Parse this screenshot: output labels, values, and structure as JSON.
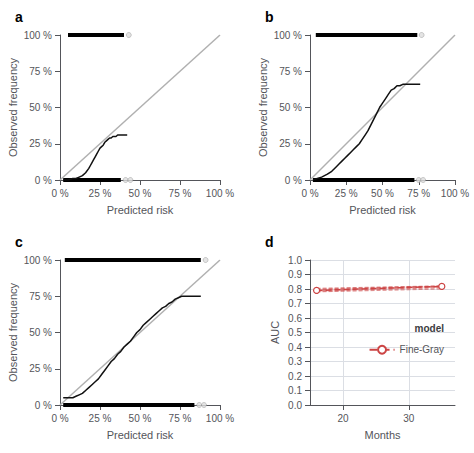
{
  "chart_data": [
    {
      "type": "line",
      "title": "a",
      "xlabel": "Predicted risk",
      "ylabel": "Observed frequency",
      "xlim": [
        0,
        100
      ],
      "ylim": [
        0,
        100
      ],
      "xticks": [
        {
          "value": 0,
          "label": "0 %"
        },
        {
          "value": 25,
          "label": "25 %"
        },
        {
          "value": 50,
          "label": "50 %"
        },
        {
          "value": 75,
          "label": "75 %"
        },
        {
          "value": 100,
          "label": "100 %"
        }
      ],
      "yticks": [
        {
          "value": 0,
          "label": "0 %"
        },
        {
          "value": 25,
          "label": "25 %"
        },
        {
          "value": 50,
          "label": "50 %"
        },
        {
          "value": 75,
          "label": "75 %"
        },
        {
          "value": 100,
          "label": "100 %"
        }
      ],
      "grid": false,
      "series": [
        {
          "type": "line",
          "color": "#b0b0b0",
          "x": [
            0,
            100
          ],
          "values": [
            0,
            100
          ]
        },
        {
          "type": "line",
          "color": "#111111",
          "x": [
            2,
            5,
            8,
            10,
            12,
            14,
            16,
            18,
            19,
            20,
            21,
            22,
            23,
            24,
            25,
            26,
            27,
            28,
            29,
            30,
            31,
            32,
            33,
            34,
            35,
            36,
            37,
            38,
            39,
            40,
            42
          ],
          "values": [
            0,
            0,
            1,
            1,
            2,
            3,
            5,
            8,
            10,
            12,
            14,
            16,
            18,
            20,
            22,
            23,
            24,
            26,
            27,
            28,
            29,
            29,
            30,
            30,
            30,
            31,
            31,
            31,
            31,
            31,
            31
          ]
        },
        {
          "type": "rug",
          "color": "#000000",
          "x": [
            5,
            40
          ],
          "values": [
            100,
            100
          ]
        },
        {
          "type": "scatter",
          "marker": "circle",
          "color": "#dddddd",
          "x": [
            43
          ],
          "values": [
            100
          ]
        },
        {
          "type": "rug",
          "color": "#000000",
          "x": [
            2,
            38
          ],
          "values": [
            0,
            0
          ]
        },
        {
          "type": "scatter",
          "marker": "circle",
          "color": "#dddddd",
          "x": [
            41,
            44
          ],
          "values": [
            0,
            0
          ]
        }
      ]
    },
    {
      "type": "line",
      "title": "b",
      "xlabel": "Predicted risk",
      "ylabel": "Observed frequency",
      "xlim": [
        0,
        100
      ],
      "ylim": [
        0,
        100
      ],
      "xticks": [
        {
          "value": 0,
          "label": "0 %"
        },
        {
          "value": 25,
          "label": "25 %"
        },
        {
          "value": 50,
          "label": "50 %"
        },
        {
          "value": 75,
          "label": "75 %"
        },
        {
          "value": 100,
          "label": "100 %"
        }
      ],
      "yticks": [
        {
          "value": 0,
          "label": "0 %"
        },
        {
          "value": 25,
          "label": "25 %"
        },
        {
          "value": 50,
          "label": "50 %"
        },
        {
          "value": 75,
          "label": "75 %"
        },
        {
          "value": 100,
          "label": "100 %"
        }
      ],
      "grid": false,
      "series": [
        {
          "type": "line",
          "color": "#b0b0b0",
          "x": [
            0,
            100
          ],
          "values": [
            0,
            100
          ]
        },
        {
          "type": "line",
          "color": "#111111",
          "x": [
            2,
            5,
            8,
            12,
            15,
            18,
            20,
            22,
            24,
            26,
            28,
            30,
            32,
            34,
            36,
            38,
            40,
            42,
            44,
            46,
            48,
            50,
            52,
            54,
            56,
            58,
            60,
            62,
            64,
            66,
            68,
            70,
            72,
            74,
            76
          ],
          "values": [
            0,
            1,
            2,
            4,
            6,
            9,
            11,
            13,
            15,
            17,
            19,
            21,
            23,
            25,
            28,
            31,
            34,
            38,
            42,
            46,
            50,
            53,
            56,
            59,
            62,
            63,
            65,
            65,
            66,
            66,
            66,
            66,
            66,
            66,
            66
          ]
        },
        {
          "type": "rug",
          "color": "#000000",
          "x": [
            4,
            74
          ],
          "values": [
            100,
            100
          ]
        },
        {
          "type": "scatter",
          "marker": "circle",
          "color": "#dddddd",
          "x": [
            77
          ],
          "values": [
            100
          ]
        },
        {
          "type": "rug",
          "color": "#000000",
          "x": [
            2,
            72
          ],
          "values": [
            0,
            0
          ]
        },
        {
          "type": "scatter",
          "marker": "circle",
          "color": "#dddddd",
          "x": [
            75,
            78
          ],
          "values": [
            0,
            0
          ]
        }
      ]
    },
    {
      "type": "line",
      "title": "c",
      "xlabel": "Predicted risk",
      "ylabel": "Observed frequency",
      "xlim": [
        0,
        100
      ],
      "ylim": [
        0,
        100
      ],
      "xticks": [
        {
          "value": 0,
          "label": "0 %"
        },
        {
          "value": 25,
          "label": "25 %"
        },
        {
          "value": 50,
          "label": "50 %"
        },
        {
          "value": 75,
          "label": "75 %"
        },
        {
          "value": 100,
          "label": "100 %"
        }
      ],
      "yticks": [
        {
          "value": 0,
          "label": "0 %"
        },
        {
          "value": 25,
          "label": "25 %"
        },
        {
          "value": 50,
          "label": "50 %"
        },
        {
          "value": 75,
          "label": "75 %"
        },
        {
          "value": 100,
          "label": "100 %"
        }
      ],
      "grid": false,
      "series": [
        {
          "type": "line",
          "color": "#b0b0b0",
          "x": [
            0,
            100
          ],
          "values": [
            0,
            100
          ]
        },
        {
          "type": "line",
          "color": "#111111",
          "x": [
            2,
            5,
            8,
            10,
            12,
            14,
            16,
            18,
            20,
            22,
            24,
            26,
            28,
            30,
            32,
            34,
            36,
            38,
            40,
            42,
            44,
            46,
            48,
            50,
            52,
            54,
            56,
            58,
            60,
            62,
            64,
            66,
            68,
            70,
            72,
            74,
            76,
            78,
            80,
            82,
            84,
            86,
            88
          ],
          "values": [
            5,
            5,
            5,
            6,
            7,
            8,
            10,
            12,
            14,
            16,
            18,
            21,
            24,
            27,
            30,
            32,
            35,
            37,
            40,
            42,
            44,
            47,
            50,
            52,
            55,
            57,
            59,
            61,
            63,
            65,
            67,
            68,
            70,
            71,
            73,
            74,
            75,
            75,
            75,
            75,
            75,
            75,
            75
          ]
        },
        {
          "type": "rug",
          "color": "#000000",
          "x": [
            3,
            88
          ],
          "values": [
            100,
            100
          ]
        },
        {
          "type": "scatter",
          "marker": "circle",
          "color": "#dddddd",
          "x": [
            91
          ],
          "values": [
            100
          ]
        },
        {
          "type": "rug",
          "color": "#000000",
          "x": [
            2,
            84
          ],
          "values": [
            0,
            0
          ]
        },
        {
          "type": "scatter",
          "marker": "circle",
          "color": "#dddddd",
          "x": [
            87,
            90
          ],
          "values": [
            0,
            0
          ]
        }
      ]
    },
    {
      "type": "line",
      "title": "d",
      "xlabel": "Months",
      "ylabel": "AUC",
      "xlim": [
        15,
        37
      ],
      "ylim": [
        0.0,
        1.0
      ],
      "xticks": [
        20,
        30
      ],
      "yticks": [
        {
          "value": 0.0,
          "label": "0.0"
        },
        0.1,
        0.2,
        0.3,
        0.4,
        0.5,
        0.6,
        0.7,
        0.8,
        0.9,
        {
          "value": 1.0,
          "label": "1.0"
        }
      ],
      "grid": true,
      "legend": "right",
      "legend_title": "model",
      "series": [
        {
          "type": "line",
          "color": "#cc4444",
          "line_style": "dashed",
          "x": [
            16,
            35
          ],
          "values": [
            0.78,
            0.8
          ]
        },
        {
          "type": "line",
          "color": "#cc4444",
          "line_style": "dashed",
          "x": [
            16,
            35
          ],
          "values": [
            0.785,
            0.808
          ]
        },
        {
          "type": "line",
          "color": "#cc4444",
          "line_style": "dashed",
          "x": [
            16,
            35
          ],
          "values": [
            0.79,
            0.815
          ]
        },
        {
          "type": "line",
          "color": "#cc4444",
          "line_style": "dashed",
          "x": [
            16,
            35
          ],
          "values": [
            0.795,
            0.818
          ]
        },
        {
          "type": "line",
          "color": "#cc4444",
          "line_style": "dashed",
          "x": [
            16,
            35
          ],
          "values": [
            0.8,
            0.82
          ]
        },
        {
          "type": "line",
          "color": "#cc4444",
          "line_style": "dashed",
          "x": [
            16,
            35
          ],
          "values": [
            0.805,
            0.822
          ]
        },
        {
          "type": "band",
          "color": "#e88888",
          "x": [
            16,
            35
          ],
          "lower": [
            0.778,
            0.808
          ],
          "upper": [
            0.802,
            0.825
          ]
        },
        {
          "name": "Fine-Gray",
          "type": "line",
          "color": "#cc4444",
          "line_style": "dashed",
          "marker": "circle",
          "x": [
            16,
            35
          ],
          "values": [
            0.79,
            0.818
          ]
        }
      ]
    }
  ]
}
